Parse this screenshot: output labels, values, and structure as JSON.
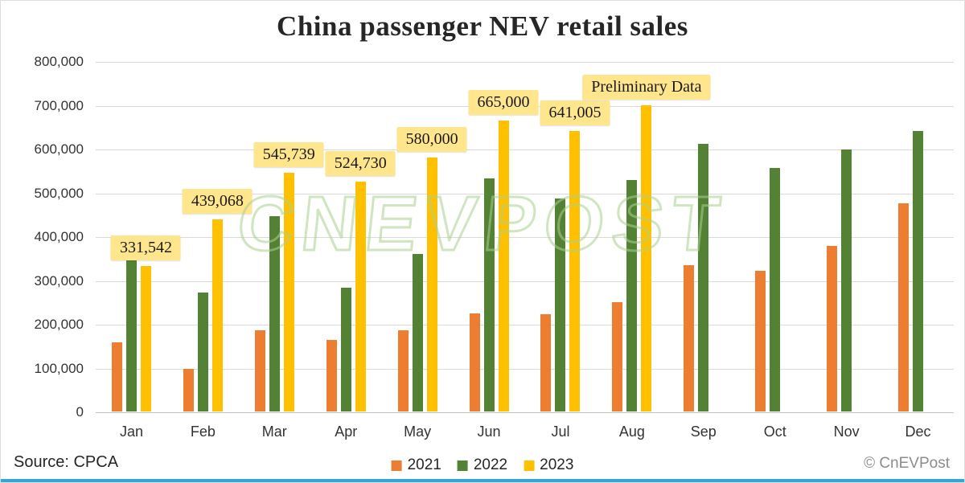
{
  "title": "China passenger NEV retail sales",
  "watermark": "CNEVPOST",
  "footer": {
    "source": "Source: CPCA",
    "copyright": "© CnEVPost"
  },
  "chart_data": {
    "type": "bar",
    "title": "China passenger NEV retail sales",
    "categories": [
      "Jan",
      "Feb",
      "Mar",
      "Apr",
      "May",
      "Jun",
      "Jul",
      "Aug",
      "Sep",
      "Oct",
      "Nov",
      "Dec"
    ],
    "series": [
      {
        "name": "2021",
        "color": "#ED7D31",
        "values": [
          158000,
          97000,
          185000,
          163000,
          185000,
          223000,
          222000,
          249000,
          334000,
          321000,
          378000,
          475000
        ]
      },
      {
        "name": "2022",
        "color": "#548235",
        "values": [
          347000,
          272000,
          445000,
          282000,
          360000,
          532000,
          486000,
          529000,
          611000,
          556000,
          598000,
          640000
        ]
      },
      {
        "name": "2023",
        "color": "#FFC000",
        "values": [
          331542,
          439068,
          545739,
          524730,
          580000,
          665000,
          641005,
          700000,
          null,
          null,
          null,
          null
        ]
      }
    ],
    "annotations": [
      {
        "month": "Jan",
        "text": "331,542"
      },
      {
        "month": "Feb",
        "text": "439,068"
      },
      {
        "month": "Mar",
        "text": "545,739"
      },
      {
        "month": "Apr",
        "text": "524,730"
      },
      {
        "month": "May",
        "text": "580,000"
      },
      {
        "month": "Jun",
        "text": "665,000"
      },
      {
        "month": "Jul",
        "text": "641,005"
      },
      {
        "month": "Aug",
        "text": "Preliminary Data"
      }
    ],
    "ylim": [
      0,
      800000
    ],
    "ytick_interval": 100000,
    "grid": true,
    "legend_position": "bottom"
  }
}
